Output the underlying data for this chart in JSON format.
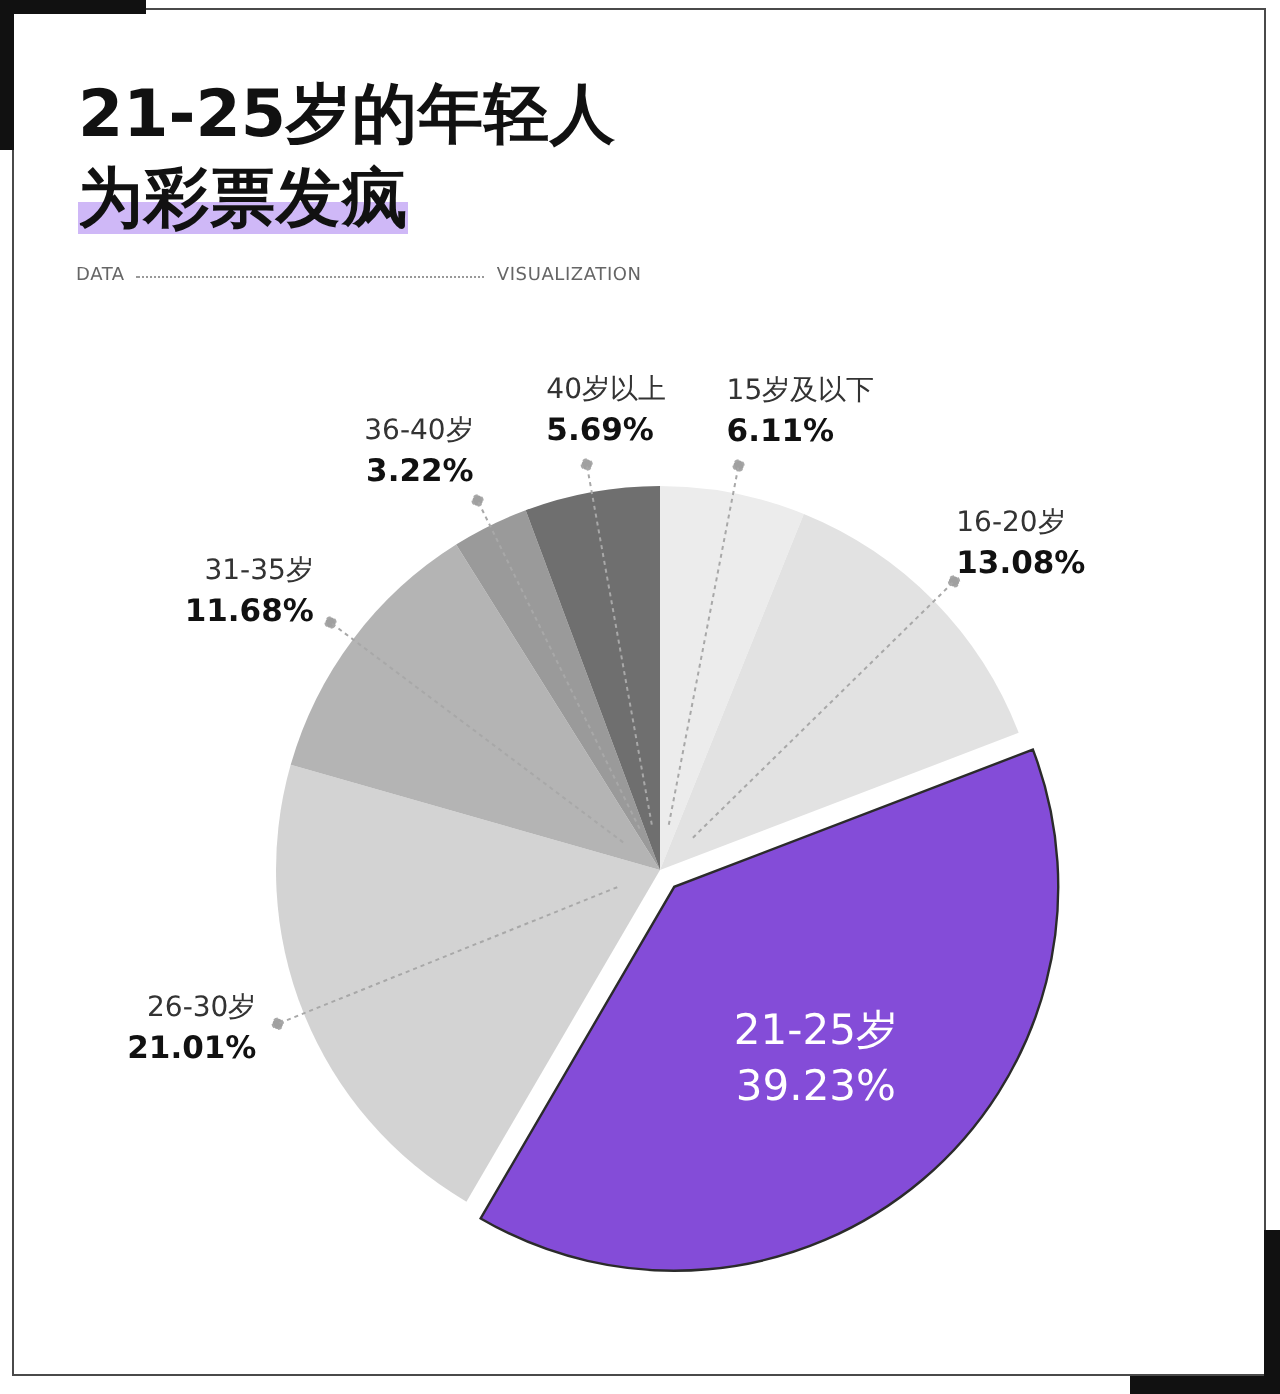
{
  "chart_data": {
    "type": "pie",
    "title": "21-25岁的年轻人为彩票发疯",
    "annotations": [
      "DATA",
      "VISUALIZATION"
    ],
    "categories": [
      "15岁及以下",
      "16-20岁",
      "21-25岁",
      "26-30岁",
      "31-35岁",
      "36-40岁",
      "40岁以上"
    ],
    "values": [
      6.11,
      13.08,
      39.23,
      21.01,
      11.68,
      3.22,
      5.69
    ],
    "colors": [
      "#ececec",
      "#e2e2e2",
      "#844cd8",
      "#d3d3d3",
      "#b4b4b4",
      "#9a9a9a",
      "#6f6f6f"
    ],
    "value_labels": [
      "6.11%",
      "13.08%",
      "39.23%",
      "21.01%",
      "11.68%",
      "3.22%",
      "5.69%"
    ]
  }
}
